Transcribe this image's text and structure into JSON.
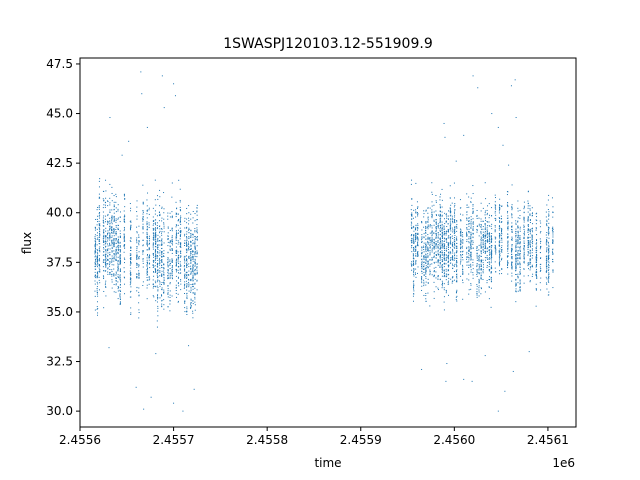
{
  "chart_data": {
    "type": "scatter",
    "title": "1SWASPJ120103.12-551909.9",
    "xlabel": "time",
    "ylabel": "flux",
    "x_offset_label": "1e6",
    "xlim": [
      2455600,
      2456130
    ],
    "ylim": [
      29.2,
      47.8
    ],
    "x_ticks": [
      2455620,
      2455670,
      2455720,
      2455770,
      2455820,
      2455870,
      2455920,
      2455970,
      2456020,
      2456070,
      2456120
    ],
    "x_tick_labels": [
      "2.4556",
      "2.4557",
      "2.4558",
      "2.4559",
      "2.4560",
      "2.4561"
    ],
    "x_tick_values": [
      2455600,
      2455700,
      2455800,
      2455900,
      2456000,
      2456100
    ],
    "y_ticks": [
      30.0,
      32.5,
      35.0,
      37.5,
      40.0,
      42.5,
      45.0,
      47.5
    ],
    "y_tick_labels": [
      "30.0",
      "32.5",
      "35.0",
      "37.5",
      "40.0",
      "42.5",
      "45.0",
      "47.5"
    ],
    "grid": false,
    "legend": "none",
    "marker_color": "#1f77b4",
    "series": [
      {
        "segments": [
          {
            "x_start": 2455616,
            "x_end": 2455727,
            "y_center": 38.0,
            "y_spread": 2.2
          },
          {
            "x_start": 2455954,
            "x_end": 2456107,
            "y_center": 38.4,
            "y_spread": 1.9
          }
        ],
        "outliers": [
          [
            2455632,
            44.8
          ],
          [
            2455645,
            42.9
          ],
          [
            2455652,
            43.6
          ],
          [
            2455665,
            47.1
          ],
          [
            2455666,
            46.0
          ],
          [
            2455672,
            44.3
          ],
          [
            2455688,
            46.9
          ],
          [
            2455690,
            45.3
          ],
          [
            2455700,
            46.5
          ],
          [
            2455702,
            45.9
          ],
          [
            2455660,
            31.2
          ],
          [
            2455668,
            30.1
          ],
          [
            2455676,
            30.7
          ],
          [
            2455681,
            32.9
          ],
          [
            2455700,
            30.4
          ],
          [
            2455710,
            30.0
          ],
          [
            2455722,
            31.1
          ],
          [
            2455631,
            33.2
          ],
          [
            2455716,
            33.3
          ],
          [
            2455989,
            44.5
          ],
          [
            2455990,
            43.8
          ],
          [
            2456002,
            42.6
          ],
          [
            2456010,
            43.9
          ],
          [
            2456020,
            46.9
          ],
          [
            2456025,
            46.3
          ],
          [
            2456040,
            45.0
          ],
          [
            2456047,
            44.3
          ],
          [
            2456052,
            43.4
          ],
          [
            2456061,
            46.4
          ],
          [
            2456065,
            46.7
          ],
          [
            2456066,
            44.8
          ],
          [
            2456058,
            42.4
          ],
          [
            2455965,
            32.1
          ],
          [
            2455992,
            32.4
          ],
          [
            2455991,
            31.5
          ],
          [
            2456010,
            31.6
          ],
          [
            2456019,
            31.5
          ],
          [
            2456033,
            32.8
          ],
          [
            2456047,
            30.0
          ],
          [
            2456054,
            31.0
          ],
          [
            2456063,
            32.0
          ],
          [
            2456080,
            33.0
          ]
        ]
      }
    ]
  }
}
